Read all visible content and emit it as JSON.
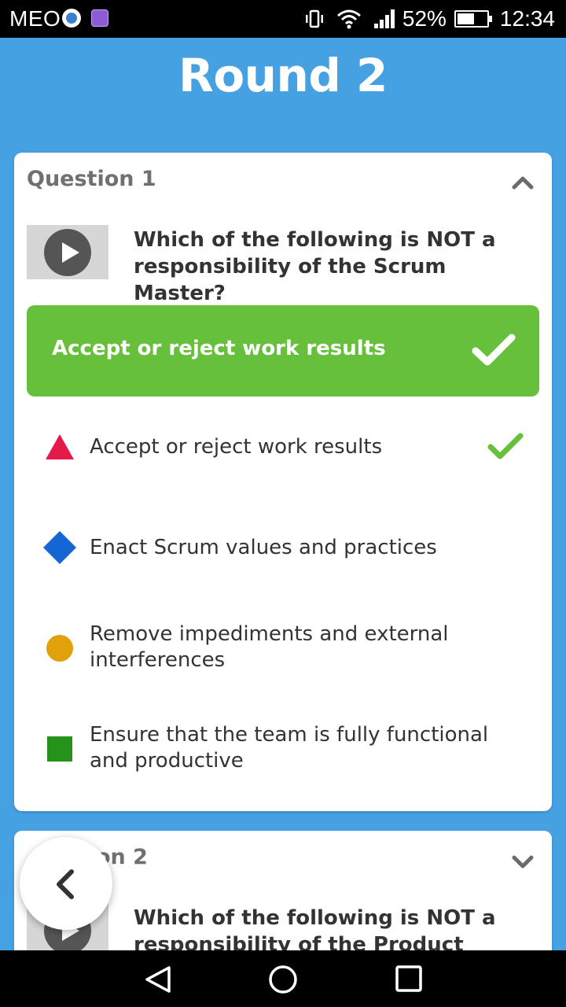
{
  "status_bar": {
    "carrier": "MEO",
    "battery_percent": "52%",
    "time": "12:34"
  },
  "page": {
    "title": "Round 2"
  },
  "questions": [
    {
      "label": "Question 1",
      "expanded": true,
      "text": "Which of the following is NOT a responsibility of the Scrum Master?",
      "correct_answer": "Accept or reject work results",
      "options": [
        {
          "text": "Accept or reject work results",
          "shape": "triangle",
          "color": "#e5194a",
          "correct": true
        },
        {
          "text": "Enact Scrum values and practices",
          "shape": "diamond",
          "color": "#1566d4",
          "correct": false
        },
        {
          "text": "Remove impediments and external interferences",
          "shape": "circle",
          "color": "#e0a10a",
          "correct": false
        },
        {
          "text": "Ensure that the team is fully functional and productive",
          "shape": "square",
          "color": "#279219",
          "correct": false
        }
      ]
    },
    {
      "label": "on 2",
      "expanded": false,
      "text": "Which of the following is NOT a responsibility of the Product"
    }
  ],
  "colors": {
    "background": "#46a1e3",
    "correct_green": "#66c03b"
  },
  "icons": {
    "back": "chevron-left-icon",
    "collapse": "chevron-up-icon",
    "expand": "chevron-down-icon",
    "play": "play-icon",
    "check": "check-icon"
  }
}
